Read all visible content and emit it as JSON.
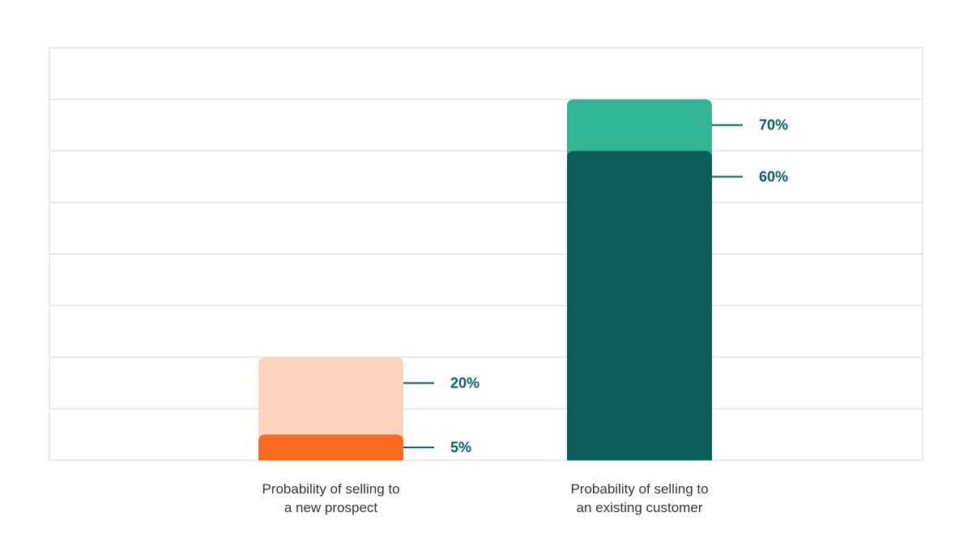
{
  "chart_data": {
    "type": "bar",
    "subtype": "overlapping",
    "categories": [
      [
        "Probability of selling to",
        "a new prospect"
      ],
      [
        "Probability of selling to",
        "an existing customer"
      ]
    ],
    "series": [
      {
        "values": [
          20,
          70
        ],
        "colors": [
          "#FCD3BD",
          "#33B594"
        ]
      },
      {
        "values": [
          5,
          60
        ],
        "colors": [
          "#F96B22",
          "#0A5E57"
        ]
      }
    ],
    "data_labels": [
      [
        "20%",
        "5%"
      ],
      [
        "70%",
        "60%"
      ]
    ],
    "ylim": [
      0,
      80
    ],
    "grid_step": 10,
    "grid": true,
    "title": "",
    "xlabel": "",
    "ylabel": "",
    "colors": {
      "label": "#0A5E57",
      "grid": "#E6EBEB"
    }
  }
}
